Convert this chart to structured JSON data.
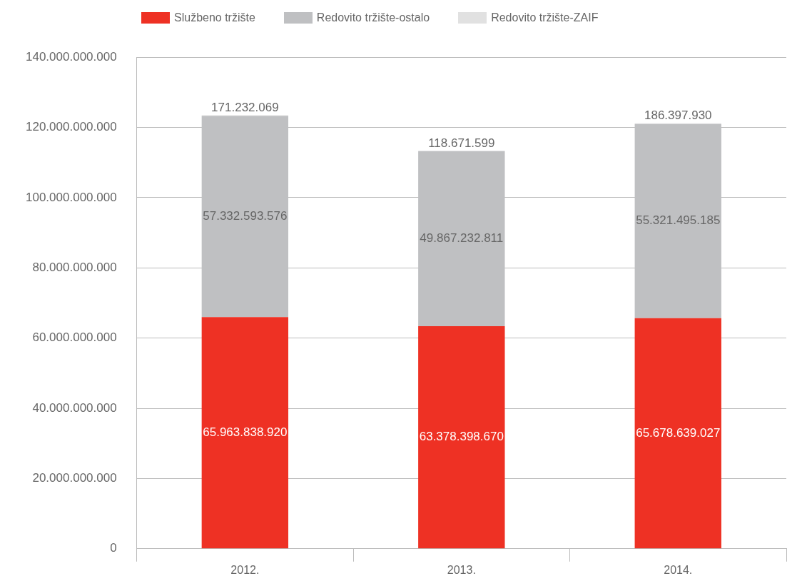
{
  "chart_data": {
    "type": "bar",
    "stacked": true,
    "categories": [
      "2012.",
      "2013.",
      "2014."
    ],
    "series": [
      {
        "name": "Službeno tržište",
        "color": "#ee3124",
        "values": [
          65963838920,
          63378398670,
          65678639027
        ],
        "value_labels": [
          "65.963.838.920",
          "63.378.398.670",
          "65.678.639.027"
        ]
      },
      {
        "name": "Redovito tržište-ostalo",
        "color": "#bfc0c2",
        "values": [
          57332593576,
          49867232811,
          55321495185
        ],
        "value_labels": [
          "57.332.593.576",
          "49.867.232.811",
          "55.321.495.185"
        ]
      },
      {
        "name": "Redovito tržište-ZAIF",
        "color": "#e1e1e1",
        "values": [
          171232069,
          118671599,
          186397930
        ],
        "value_labels": [
          "171.232.069",
          "118.671.599",
          "186.397.930"
        ]
      }
    ],
    "ylim": [
      0,
      140000000000
    ],
    "yticks": [
      {
        "value": 0,
        "label": "0"
      },
      {
        "value": 20000000000,
        "label": "20.000.000.000"
      },
      {
        "value": 40000000000,
        "label": "40.000.000.000"
      },
      {
        "value": 60000000000,
        "label": "60.000.000.000"
      },
      {
        "value": 80000000000,
        "label": "80.000.000.000"
      },
      {
        "value": 100000000000,
        "label": "100.000.000.000"
      },
      {
        "value": 120000000000,
        "label": "120.000.000.000"
      },
      {
        "value": 140000000000,
        "label": "140.000.000.000"
      }
    ],
    "grid": "y",
    "legend": "top"
  }
}
